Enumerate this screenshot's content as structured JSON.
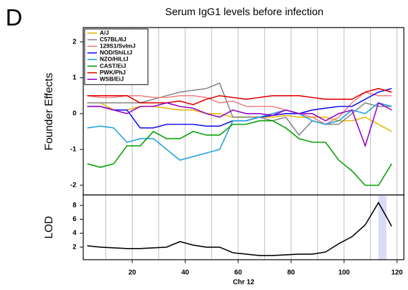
{
  "panel_label": "D",
  "chart_data": [
    {
      "type": "line",
      "title": "Serum IgG1 levels before infection",
      "ylabel": "Founder Effects",
      "x": [
        3,
        8,
        13,
        18,
        23,
        28,
        33,
        38,
        43,
        48,
        53,
        58,
        63,
        68,
        73,
        78,
        83,
        88,
        93,
        98,
        103,
        108,
        113,
        118
      ],
      "xlim": [
        1.5,
        122.6
      ],
      "ylim": [
        -2.27,
        2.4
      ],
      "yticks": [
        -2,
        -1,
        0,
        1,
        2
      ],
      "vgrid": [
        10,
        20,
        30,
        40,
        50,
        60,
        70,
        80,
        90,
        100,
        110,
        120
      ],
      "legend": "top-left",
      "series": [
        {
          "name": "A/J",
          "color": "#e8b800",
          "values": [
            0.3,
            0.3,
            0.1,
            0.1,
            0.2,
            0.2,
            0.15,
            0.1,
            0.1,
            0.0,
            0.0,
            -0.1,
            -0.1,
            -0.1,
            -0.1,
            -0.05,
            -0.1,
            -0.1,
            -0.1,
            -0.2,
            -0.2,
            -0.1,
            -0.3,
            -0.5
          ]
        },
        {
          "name": "C57BL/6J",
          "color": "#888888",
          "values": [
            0.3,
            0.3,
            0.3,
            0.3,
            0.3,
            0.4,
            0.5,
            0.6,
            0.65,
            0.7,
            0.85,
            -0.1,
            -0.1,
            -0.1,
            -0.2,
            -0.1,
            -0.6,
            -0.2,
            -0.3,
            -0.3,
            0.0,
            0.3,
            0.2,
            0.2
          ]
        },
        {
          "name": "129S1/SvImJ",
          "color": "#f08080",
          "values": [
            0.5,
            0.45,
            0.45,
            0.5,
            0.5,
            0.45,
            0.45,
            0.5,
            0.5,
            0.45,
            0.3,
            0.35,
            0.2,
            0.2,
            0.2,
            0.1,
            0.0,
            -0.1,
            -0.3,
            -0.1,
            0.3,
            0.6,
            0.5,
            0.5
          ]
        },
        {
          "name": "NOD/ShiLtJ",
          "color": "#1010f0",
          "values": [
            0.2,
            0.2,
            0.1,
            0.1,
            -0.4,
            -0.4,
            -0.3,
            -0.3,
            -0.3,
            -0.35,
            -0.35,
            -0.2,
            -0.2,
            -0.1,
            -0.05,
            0.0,
            0.0,
            0.1,
            0.15,
            0.2,
            0.2,
            0.4,
            0.6,
            0.7
          ]
        },
        {
          "name": "NZO/HlLtJ",
          "color": "#1ea0e0",
          "values": [
            -0.4,
            -0.35,
            -0.4,
            -0.8,
            -0.7,
            -0.7,
            -1.0,
            -1.3,
            -1.2,
            -1.1,
            -1.0,
            -0.2,
            -0.2,
            -0.1,
            0.0,
            0.1,
            0.0,
            -0.2,
            -0.3,
            -0.2,
            0.1,
            0.0,
            0.3,
            0.2
          ]
        },
        {
          "name": "CAST/EiJ",
          "color": "#00a000",
          "values": [
            -1.4,
            -1.5,
            -1.4,
            -0.9,
            -0.9,
            -0.5,
            -0.7,
            -0.7,
            -0.5,
            -0.6,
            -0.6,
            -0.3,
            -0.3,
            -0.2,
            -0.2,
            -0.4,
            -0.7,
            -0.8,
            -0.8,
            -1.3,
            -1.6,
            -2.0,
            -2.0,
            -1.4
          ]
        },
        {
          "name": "PWK/PhJ",
          "color": "#e00000",
          "values": [
            0.5,
            0.5,
            0.5,
            0.5,
            0.3,
            0.3,
            0.3,
            0.35,
            0.25,
            0.4,
            0.5,
            0.45,
            0.4,
            0.45,
            0.5,
            0.5,
            0.5,
            0.45,
            0.4,
            0.4,
            0.4,
            0.6,
            0.7,
            0.6
          ]
        },
        {
          "name": "WSB/EiJ",
          "color": "#9900cc",
          "values": [
            0.2,
            0.2,
            0.1,
            0.0,
            0.2,
            0.2,
            0.3,
            0.2,
            0.15,
            0.0,
            -0.1,
            0.1,
            0.0,
            0.0,
            -0.05,
            0.1,
            0.0,
            0.0,
            -0.2,
            0.0,
            0.1,
            -0.9,
            0.3,
            0.1
          ]
        }
      ]
    },
    {
      "type": "line",
      "ylabel": "LOD",
      "xlabel": "Chr 12",
      "x": [
        3,
        8,
        13,
        18,
        23,
        28,
        33,
        38,
        43,
        48,
        53,
        58,
        63,
        68,
        73,
        78,
        83,
        88,
        93,
        98,
        103,
        108,
        113,
        118
      ],
      "xlim": [
        1.5,
        122.6
      ],
      "xticks": [
        20,
        40,
        60,
        80,
        100,
        120
      ],
      "ylim": [
        0.2,
        9.5
      ],
      "yticks": [
        2,
        4,
        6,
        8
      ],
      "vgrid": [
        10,
        20,
        30,
        40,
        50,
        60,
        70,
        80,
        90,
        100,
        110,
        120
      ],
      "interval": [
        113,
        116
      ],
      "series": [
        {
          "color": "#000000",
          "values": [
            2.2,
            2.0,
            1.9,
            1.8,
            1.8,
            1.9,
            2.0,
            2.8,
            2.3,
            2.0,
            2.0,
            1.2,
            1.0,
            0.8,
            0.8,
            0.9,
            1.0,
            1.0,
            1.3,
            2.5,
            3.5,
            5.2,
            8.4,
            5.0
          ]
        }
      ]
    }
  ]
}
